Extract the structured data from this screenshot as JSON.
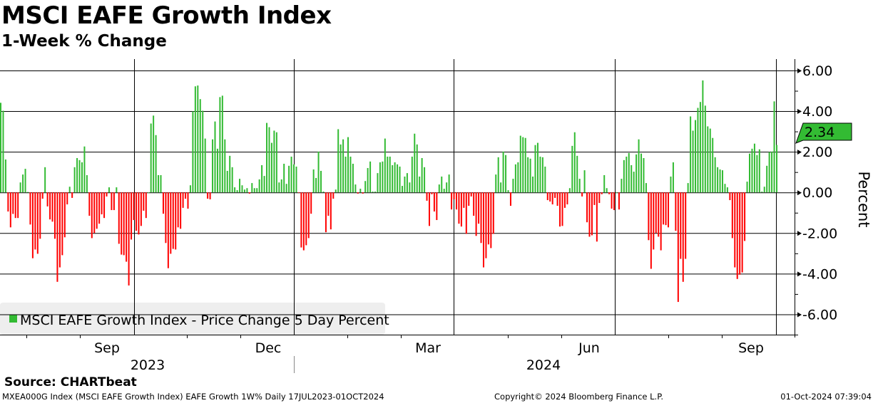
{
  "header": {
    "title": "MSCI EAFE Growth Index",
    "subtitle": "1-Week % Change"
  },
  "footer": {
    "source": "Source: CHARTbeat",
    "description": "MXEA000G Index (MSCI EAFE Growth Index) EAFE Growth 1W%  Daily 17JUL2023-01OCT2024",
    "copyright": "Copyright© 2024 Bloomberg Finance L.P.",
    "timestamp": "01-Oct-2024 07:39:04"
  },
  "chart_data": {
    "type": "bar",
    "title": "MSCI EAFE Growth Index",
    "subtitle": "1-Week % Change",
    "ylabel": "Percent",
    "ylim": [
      -7,
      6.56
    ],
    "yticks": [
      "6.00",
      "4.00",
      "2.00",
      "0.00",
      "-2.00",
      "-4.00",
      "-6.00"
    ],
    "ytick_values": [
      6,
      4,
      2,
      0,
      -2,
      -4,
      -6
    ],
    "xtick_labels": [
      "Sep",
      "Dec",
      "Mar",
      "Jun",
      "Sep"
    ],
    "year_labels": [
      "2023",
      "2024"
    ],
    "date_range": "17JUL2023-01OCT2024",
    "grid": true,
    "legend": {
      "position": "bottom-left",
      "label": "MSCI EAFE Growth Index - Price Change 5 Day Percent"
    },
    "last_value_label": "2.34",
    "colors": {
      "positive": "#33bb33",
      "negative": "#ff0000",
      "legend_bg": "#eeeeee"
    },
    "series": [
      {
        "name": "MSCI EAFE Growth Index - Price Change 5 Day Percent",
        "values": [
          4.41,
          4.02,
          1.62,
          -0.94,
          -1.72,
          -1.06,
          -1.26,
          -1.26,
          0.49,
          0.88,
          1.16,
          0.02,
          -1.58,
          -3.24,
          -2.81,
          -3.02,
          -2.28,
          -0.31,
          1.24,
          -0.69,
          -1.33,
          -1.44,
          -2.28,
          -4.4,
          -3.69,
          -3.09,
          -2.21,
          -0.59,
          0.28,
          -0.27,
          1.24,
          1.69,
          1.59,
          1.48,
          2.26,
          0.85,
          -1.15,
          -2.25,
          -2.0,
          -1.79,
          -1.54,
          -1.08,
          -1.26,
          -0.2,
          0.25,
          -0.87,
          -0.87,
          0.25,
          -2.53,
          -3.06,
          -3.09,
          -3.41,
          -4.58,
          -2.32,
          -1.36,
          -1.89,
          -2.07,
          -1.65,
          -0.9,
          -1.26,
          0,
          3.39,
          3.78,
          2.82,
          0.85,
          0.85,
          -1.05,
          -2.49,
          -3.73,
          -3.02,
          -2.78,
          -2.81,
          -1.72,
          -1.79,
          -0.76,
          -0.31,
          -0.8,
          0.35,
          3.99,
          5.22,
          5.26,
          4.59,
          4.02,
          2.65,
          -0.31,
          -0.34,
          2.61,
          3.49,
          2.15,
          4.69,
          4.76,
          2.61,
          1.06,
          1.8,
          1.24,
          0.25,
          0.11,
          0.67,
          0.35,
          0.14,
          0.21,
          -0.06,
          0.46,
          0.21,
          0.21,
          0.64,
          1.34,
          0.81,
          3.42,
          3.21,
          2.44,
          3.04,
          2.96,
          0.49,
          0.64,
          1.41,
          0.42,
          1.31,
          1.76,
          1.38,
          1.27,
          -0.02,
          -2.71,
          -2.85,
          -2.6,
          -2.25,
          -1.05,
          1.13,
          0.71,
          2.01,
          1.06,
          0.04,
          -1.96,
          -1.15,
          -1.82,
          -0.31,
          0.14,
          3.11,
          2.36,
          2.61,
          1.76,
          2.72,
          1.76,
          1.41,
          0.39,
          -0.06,
          0.18,
          -0.06,
          0.56,
          1.2,
          1.52,
          0.04,
          0.04,
          0.95,
          1.48,
          1.52,
          2.65,
          1.76,
          1.76,
          1.34,
          1.48,
          1.38,
          1.27,
          0.32,
          0.78,
          0.95,
          0.49,
          1.76,
          2.89,
          2.36,
          0.78,
          1.69,
          1.24,
          -0.41,
          -1.65,
          -0.09,
          -0.94,
          -1.36,
          0.39,
          0.78,
          0.18,
          0.49,
          0.88,
          -0.84,
          -0.34,
          -0.84,
          -1.54,
          -1.68,
          -0.76,
          -2.04,
          -0.66,
          -0.2,
          -1.15,
          -2.14,
          -1.54,
          -2.49,
          -3.69,
          -3.24,
          -2.56,
          -2.74,
          -2.04,
          0.88,
          1.73,
          0.49,
          2.01,
          1.84,
          0.11,
          -0.66,
          0.67,
          1.38,
          1.48,
          2.79,
          2.72,
          2.68,
          1.73,
          1.66,
          0.78,
          2.33,
          2.44,
          1.76,
          1.73,
          1.27,
          -0.38,
          -0.45,
          -0.59,
          -0.27,
          -0.66,
          -1.68,
          -1.65,
          -0.76,
          -0.59,
          0.21,
          2.29,
          2.96,
          1.8,
          0.67,
          -0.2,
          1.09,
          -1.47,
          -2.18,
          -2.11,
          -0.62,
          -2.42,
          -0.52,
          -0.09,
          0.85,
          0.21,
          -0.09,
          -0.8,
          -0.87,
          0,
          -0.84,
          0.67,
          1.59,
          1.76,
          1.94,
          1.34,
          1.02,
          1.87,
          2.61,
          1.91,
          1.69,
          0.46,
          -2.35,
          -3.76,
          -2.81,
          -2.0,
          -2.18,
          -2.85,
          -1.58,
          -1.61,
          -1.72,
          0.78,
          1.48,
          -1.89,
          -5.39,
          -3.27,
          -4.4,
          -3.27,
          0.46,
          3.74,
          3.04,
          3.56,
          4.16,
          4.45,
          5.51,
          4.27,
          3.25,
          3.14,
          2.68,
          1.73,
          1.24,
          1.13,
          1.09,
          0.42,
          0.25,
          -0.38,
          -2.25,
          -3.69,
          -4.26,
          -4.05,
          -3.94,
          -2.39,
          0.53,
          1.91,
          2.15,
          2.4,
          1.84,
          2.12,
          0.04,
          0.28,
          1.31,
          1.98,
          2.01,
          4.48,
          2.34
        ]
      }
    ]
  }
}
